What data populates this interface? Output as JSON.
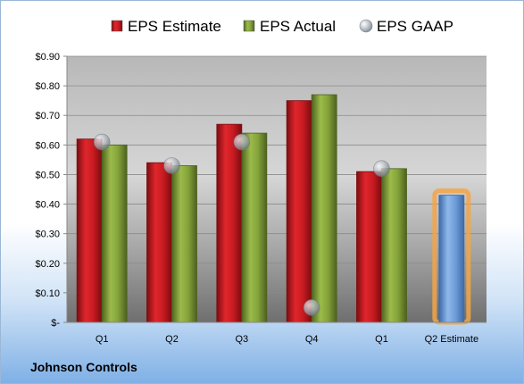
{
  "company": "Johnson Controls",
  "chart_data": {
    "type": "bar",
    "title": "",
    "xlabel": "",
    "ylabel": "",
    "categories": [
      "Q1",
      "Q2",
      "Q3",
      "Q4",
      "Q1",
      "Q2 Estimate"
    ],
    "ylim": [
      0,
      0.9
    ],
    "yticks": [
      0,
      0.1,
      0.2,
      0.3,
      0.4,
      0.5,
      0.6,
      0.7,
      0.8,
      0.9
    ],
    "ytick_labels": [
      "$-",
      "$0.10",
      "$0.20",
      "$0.30",
      "$0.40",
      "$0.50",
      "$0.60",
      "$0.70",
      "$0.80",
      "$0.90"
    ],
    "legend_position": "top",
    "grid": true,
    "series": [
      {
        "name": "EPS Estimate",
        "type": "bar",
        "color": "#c0161c",
        "values": [
          0.62,
          0.54,
          0.67,
          0.75,
          0.51,
          null
        ]
      },
      {
        "name": "EPS Actual",
        "type": "bar",
        "color": "#7e9c34",
        "values": [
          0.6,
          0.53,
          0.64,
          0.77,
          0.52,
          null
        ]
      },
      {
        "name": "EPS GAAP",
        "type": "marker",
        "color": "#b5bcc6",
        "values": [
          0.61,
          0.53,
          0.61,
          0.05,
          0.52,
          null
        ]
      },
      {
        "name": "Q2 Estimate",
        "type": "bar",
        "color": "#6a9ad6",
        "highlight": "#f5a545",
        "values": [
          null,
          null,
          null,
          null,
          null,
          0.43
        ]
      }
    ]
  }
}
